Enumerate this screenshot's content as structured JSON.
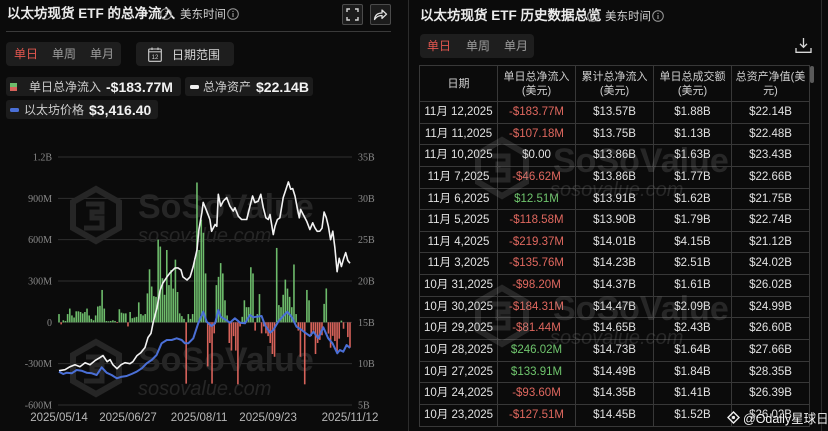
{
  "left_panel": {
    "title": "以太坊现货 ETF 的总净流入",
    "timezone": "美东时间",
    "period_tabs": [
      {
        "label": "单日",
        "active": true
      },
      {
        "label": "单周",
        "active": false
      },
      {
        "label": "单月",
        "active": false
      }
    ],
    "date_range_label": "日期范围",
    "calendar_day": "12",
    "legend": [
      {
        "label": "单日总净流入",
        "value": "-$183.77M",
        "icon": "bar-swatch-icon"
      },
      {
        "label": "总净资产",
        "value": "$22.14B",
        "icon": "white-line-icon"
      },
      {
        "label": "以太坊价格",
        "value": "$3,416.40",
        "icon": "blue-line-icon"
      }
    ]
  },
  "right_panel": {
    "title": "以太坊现货 ETF 历史数据总览",
    "timezone": "美东时间",
    "period_tabs": [
      {
        "label": "单日",
        "active": true
      },
      {
        "label": "单周",
        "active": false
      },
      {
        "label": "单月",
        "active": false
      }
    ],
    "table": {
      "headers": [
        {
          "line1": "日期",
          "line2": ""
        },
        {
          "line1": "单日总净流入",
          "line2": "(美元)"
        },
        {
          "line1": "累计总净流入",
          "line2": "(美元)"
        },
        {
          "line1": "单日总成交额",
          "line2": "(美元)"
        },
        {
          "line1": "总资产净值(美",
          "line2": "元)"
        }
      ],
      "rows": [
        {
          "date": "11月 12,2025",
          "net_inflow": "-$183.77M",
          "cum_inflow": "$13.57B",
          "value_traded": "$1.88B",
          "net_assets": "$22.14B"
        },
        {
          "date": "11月 11,2025",
          "net_inflow": "-$107.18M",
          "cum_inflow": "$13.75B",
          "value_traded": "$1.13B",
          "net_assets": "$22.48B"
        },
        {
          "date": "11月 10,2025",
          "net_inflow": "$0.00",
          "cum_inflow": "$13.86B",
          "value_traded": "$1.63B",
          "net_assets": "$23.43B"
        },
        {
          "date": "11月 7,2025",
          "net_inflow": "-$46.62M",
          "cum_inflow": "$13.86B",
          "value_traded": "$1.77B",
          "net_assets": "$22.66B"
        },
        {
          "date": "11月 6,2025",
          "net_inflow": "$12.51M",
          "cum_inflow": "$13.91B",
          "value_traded": "$1.62B",
          "net_assets": "$21.75B"
        },
        {
          "date": "11月 5,2025",
          "net_inflow": "-$118.58M",
          "cum_inflow": "$13.90B",
          "value_traded": "$1.79B",
          "net_assets": "$22.74B"
        },
        {
          "date": "11月 4,2025",
          "net_inflow": "-$219.37M",
          "cum_inflow": "$14.01B",
          "value_traded": "$4.15B",
          "net_assets": "$21.12B"
        },
        {
          "date": "11月 3,2025",
          "net_inflow": "-$135.76M",
          "cum_inflow": "$14.23B",
          "value_traded": "$2.51B",
          "net_assets": "$24.02B"
        },
        {
          "date": "10月 31,2025",
          "net_inflow": "-$98.20M",
          "cum_inflow": "$14.37B",
          "value_traded": "$1.61B",
          "net_assets": "$26.02B"
        },
        {
          "date": "10月 30,2025",
          "net_inflow": "-$184.31M",
          "cum_inflow": "$14.47B",
          "value_traded": "$2.09B",
          "net_assets": "$24.99B"
        },
        {
          "date": "10月 29,2025",
          "net_inflow": "-$81.44M",
          "cum_inflow": "$14.65B",
          "value_traded": "$2.43B",
          "net_assets": "$26.60B"
        },
        {
          "date": "10月 28,2025",
          "net_inflow": "$246.02M",
          "cum_inflow": "$14.73B",
          "value_traded": "$1.64B",
          "net_assets": "$27.66B"
        },
        {
          "date": "10月 27,2025",
          "net_inflow": "$133.91M",
          "cum_inflow": "$14.49B",
          "value_traded": "$1.84B",
          "net_assets": "$28.35B"
        },
        {
          "date": "10月 24,2025",
          "net_inflow": "-$93.60M",
          "cum_inflow": "$14.35B",
          "value_traded": "$1.41B",
          "net_assets": "$26.39B"
        },
        {
          "date": "10月 23,2025",
          "net_inflow": "-$127.51M",
          "cum_inflow": "$14.45B",
          "value_traded": "$1.52B",
          "net_assets": "$26.02B"
        }
      ]
    }
  },
  "watermark": {
    "brand": "SoSoValue",
    "url": "sosovalue.com",
    "source": "@Odaily星球日报"
  },
  "colors": {
    "accent_red": "#e0564f",
    "inflow_green": "#6dbb6b",
    "outflow_red": "#d6625a",
    "net_assets_line": "#f2f2f2",
    "eth_price_line": "#4a6fd6",
    "positive_text": "#6fc56d",
    "negative_text": "#e0685f"
  },
  "chart_data": {
    "type": "bar",
    "title": "以太坊现货 ETF 的总净流入",
    "xlabel": "",
    "ylabel": "",
    "grid": true,
    "legend_position": "top-left",
    "x_ticks": [
      {
        "label": "2025/05/14",
        "index": 0
      },
      {
        "label": "2025/06/27",
        "index": 32
      },
      {
        "label": "2025/08/11",
        "index": 65
      },
      {
        "label": "2025/09/23",
        "index": 97
      },
      {
        "label": "2025/11/12",
        "index": 135
      }
    ],
    "left_axis": {
      "label": "单日总净流入 (USD M)",
      "range": [
        -600,
        1200
      ],
      "ticks": [
        -600,
        -300,
        0,
        300,
        600,
        900,
        1200
      ],
      "tick_labels": [
        "-600M",
        "-300M",
        "0",
        "300M",
        "600M",
        "900M",
        "1.2B"
      ]
    },
    "right_axis": {
      "label": "总净资产 (USD B)",
      "range": [
        5,
        35
      ],
      "ticks": [
        5,
        10,
        15,
        20,
        25,
        30,
        35
      ],
      "tick_labels": [
        "5B",
        "10B",
        "15B",
        "20B",
        "25B",
        "30B",
        "35B"
      ]
    },
    "price_axis_hidden_range": [
      1190,
      10877
    ],
    "series": [
      {
        "name": "单日总净流入",
        "type": "bar",
        "unit": "USD M",
        "values": [
          60,
          -15,
          15,
          10,
          60,
          100,
          50,
          35,
          80,
          80,
          75,
          65,
          75,
          100,
          50,
          25,
          15,
          50,
          115,
          120,
          235,
          100,
          10,
          8,
          10,
          15,
          10,
          -5,
          95,
          70,
          65,
          65,
          -30,
          75,
          30,
          35,
          40,
          145,
          60,
          50,
          60,
          210,
          385,
          260,
          190,
          185,
          600,
          550,
          320,
          200,
          525,
          270,
          380,
          245,
          455,
          220,
          65,
          45,
          25,
          -445,
          60,
          25,
          60,
          465,
          1015,
          525,
          745,
          650,
          355,
          -320,
          -150,
          -445,
          -80,
          270,
          330,
          430,
          355,
          160,
          50,
          -150,
          -205,
          -100,
          -205,
          -450,
          -30,
          40,
          160,
          110,
          110,
          400,
          355,
          -60,
          60,
          205,
          -80,
          -30,
          -80,
          -100,
          -150,
          -230,
          -250,
          540,
          125,
          110,
          200,
          310,
          245,
          185,
          110,
          420,
          60,
          -60,
          -250,
          -60,
          -450,
          235,
          160,
          -100,
          -60,
          -230,
          -150,
          -127.51,
          -93.6,
          133.91,
          246.02,
          -81.44,
          -184.31,
          -98.2,
          -135.76,
          -219.37,
          -118.58,
          12.51,
          -46.62,
          0,
          -107.18,
          -183.77
        ]
      },
      {
        "name": "总净资产",
        "type": "line",
        "unit": "USD B",
        "points": [
          [
            0,
            9.15
          ],
          [
            2.8,
            9.27
          ],
          [
            5.1,
            9.63
          ],
          [
            7.4,
            9.88
          ],
          [
            9.7,
            9.63
          ],
          [
            12.1,
            10.12
          ],
          [
            14.4,
            9.88
          ],
          [
            16.7,
            10.37
          ],
          [
            19,
            10.73
          ],
          [
            20.4,
            10.98
          ],
          [
            22.3,
            10.24
          ],
          [
            23.7,
            10.49
          ],
          [
            25,
            9.88
          ],
          [
            26.9,
            9.39
          ],
          [
            28.8,
            9.88
          ],
          [
            30.6,
            10.12
          ],
          [
            32.9,
            10.0
          ],
          [
            34.3,
            10.24
          ],
          [
            36.2,
            10.98
          ],
          [
            38,
            11.34
          ],
          [
            39.9,
            11.95
          ],
          [
            41.3,
            13.17
          ],
          [
            42.7,
            13.66
          ],
          [
            43.6,
            14.88
          ],
          [
            45.5,
            16.83
          ],
          [
            46.9,
            18.9
          ],
          [
            48.2,
            19.76
          ],
          [
            50.1,
            20.49
          ],
          [
            51.5,
            20.98
          ],
          [
            53.8,
            21.59
          ],
          [
            55.2,
            21.59
          ],
          [
            56.6,
            21.34
          ],
          [
            57.5,
            20.49
          ],
          [
            59.4,
            20.12
          ],
          [
            60.8,
            20.49
          ],
          [
            62.2,
            21.71
          ],
          [
            64,
            23.78
          ],
          [
            64.9,
            26.22
          ],
          [
            66.3,
            28.29
          ],
          [
            66.9,
            29.51
          ],
          [
            68.5,
            28.45
          ],
          [
            70,
            27.44
          ],
          [
            70.8,
            26.01
          ],
          [
            72.4,
            26.83
          ],
          [
            73.2,
            26.62
          ],
          [
            73.9,
            30.49
          ],
          [
            75,
            29.06
          ],
          [
            76.2,
            29.67
          ],
          [
            77.8,
            30.09
          ],
          [
            79.3,
            29.06
          ],
          [
            80.8,
            28.45
          ],
          [
            81.6,
            28.87
          ],
          [
            83.2,
            27.84
          ],
          [
            84.7,
            27.44
          ],
          [
            87.1,
            27.44
          ],
          [
            88.6,
            29.06
          ],
          [
            89.8,
            30.28
          ],
          [
            90.9,
            29.48
          ],
          [
            92.4,
            29.67
          ],
          [
            93.6,
            30.49
          ],
          [
            94.8,
            28.87
          ],
          [
            96,
            27.65
          ],
          [
            97.1,
            27.44
          ],
          [
            97.9,
            28.05
          ],
          [
            99.4,
            25.61
          ],
          [
            100.2,
            26.62
          ],
          [
            101.3,
            27.44
          ],
          [
            102.5,
            27.65
          ],
          [
            104,
            30.09
          ],
          [
            105.3,
            31.1
          ],
          [
            106.4,
            31.99
          ],
          [
            107.5,
            31.1
          ],
          [
            108.4,
            31.18
          ],
          [
            109.5,
            30.28
          ],
          [
            110.5,
            28.87
          ],
          [
            111.5,
            27.65
          ],
          [
            112.1,
            28.66
          ],
          [
            113.3,
            28.05
          ],
          [
            114.9,
            27.23
          ],
          [
            116.4,
            26.22
          ],
          [
            117.7,
            27.04
          ],
          [
            118.7,
            26.43
          ],
          [
            119.8,
            26.01
          ],
          [
            121,
            26.02
          ],
          [
            122,
            26.39
          ],
          [
            123,
            28.35
          ],
          [
            124,
            27.66
          ],
          [
            125,
            26.6
          ],
          [
            126,
            24.99
          ],
          [
            127,
            26.02
          ],
          [
            128,
            24.02
          ],
          [
            129,
            21.12
          ],
          [
            130,
            22.74
          ],
          [
            131,
            21.75
          ],
          [
            132,
            22.66
          ],
          [
            133,
            23.43
          ],
          [
            134,
            22.48
          ],
          [
            135,
            22.14
          ]
        ]
      },
      {
        "name": "以太坊价格",
        "type": "line",
        "unit": "USD",
        "points": [
          [
            0,
            2490
          ],
          [
            2,
            2400
          ],
          [
            3.6,
            2451
          ],
          [
            5.9,
            2428
          ],
          [
            8.2,
            2557
          ],
          [
            10.5,
            2529
          ],
          [
            12.8,
            2451
          ],
          [
            15.2,
            2428
          ],
          [
            17.5,
            2361
          ],
          [
            19.8,
            2662
          ],
          [
            22.1,
            2451
          ],
          [
            24.4,
            2361
          ],
          [
            26.8,
            2232
          ],
          [
            29.1,
            2295
          ],
          [
            31.4,
            2322
          ],
          [
            33.7,
            2400
          ],
          [
            36,
            2490
          ],
          [
            38.4,
            2623
          ],
          [
            40.7,
            2818
          ],
          [
            43,
            2947
          ],
          [
            45.3,
            3143
          ],
          [
            47.6,
            3600
          ],
          [
            50,
            3728
          ],
          [
            52.3,
            3728
          ],
          [
            54.6,
            3795
          ],
          [
            56.9,
            3728
          ],
          [
            58.4,
            3600
          ],
          [
            60,
            3600
          ],
          [
            62.3,
            3795
          ],
          [
            64.6,
            4381
          ],
          [
            66.9,
            4834
          ],
          [
            68.5,
            4443
          ],
          [
            70.8,
            4275
          ],
          [
            72.4,
            4381
          ],
          [
            73.9,
            4900
          ],
          [
            75,
            4639
          ],
          [
            77,
            4537
          ],
          [
            79.3,
            4404
          ],
          [
            81.6,
            4576
          ],
          [
            84,
            4404
          ],
          [
            86.3,
            4381
          ],
          [
            88.6,
            4705
          ],
          [
            90.1,
            4615
          ],
          [
            91.7,
            4639
          ],
          [
            94,
            4666
          ],
          [
            95.5,
            4314
          ],
          [
            97.9,
            4014
          ],
          [
            99.4,
            4119
          ],
          [
            101.7,
            4443
          ],
          [
            104,
            4666
          ],
          [
            105.9,
            4834
          ],
          [
            107.9,
            4639
          ],
          [
            110.2,
            4248
          ],
          [
            112.6,
            4119
          ],
          [
            114.6,
            3990
          ],
          [
            116.4,
            3885
          ],
          [
            118,
            4053
          ],
          [
            120.3,
            3795
          ],
          [
            122.6,
            4225
          ],
          [
            124.9,
            3795
          ],
          [
            126.9,
            3600
          ],
          [
            129.1,
            3209
          ],
          [
            130.3,
            3338
          ],
          [
            131.9,
            3271
          ],
          [
            133.4,
            3533
          ],
          [
            135,
            3416.4
          ]
        ]
      }
    ]
  }
}
